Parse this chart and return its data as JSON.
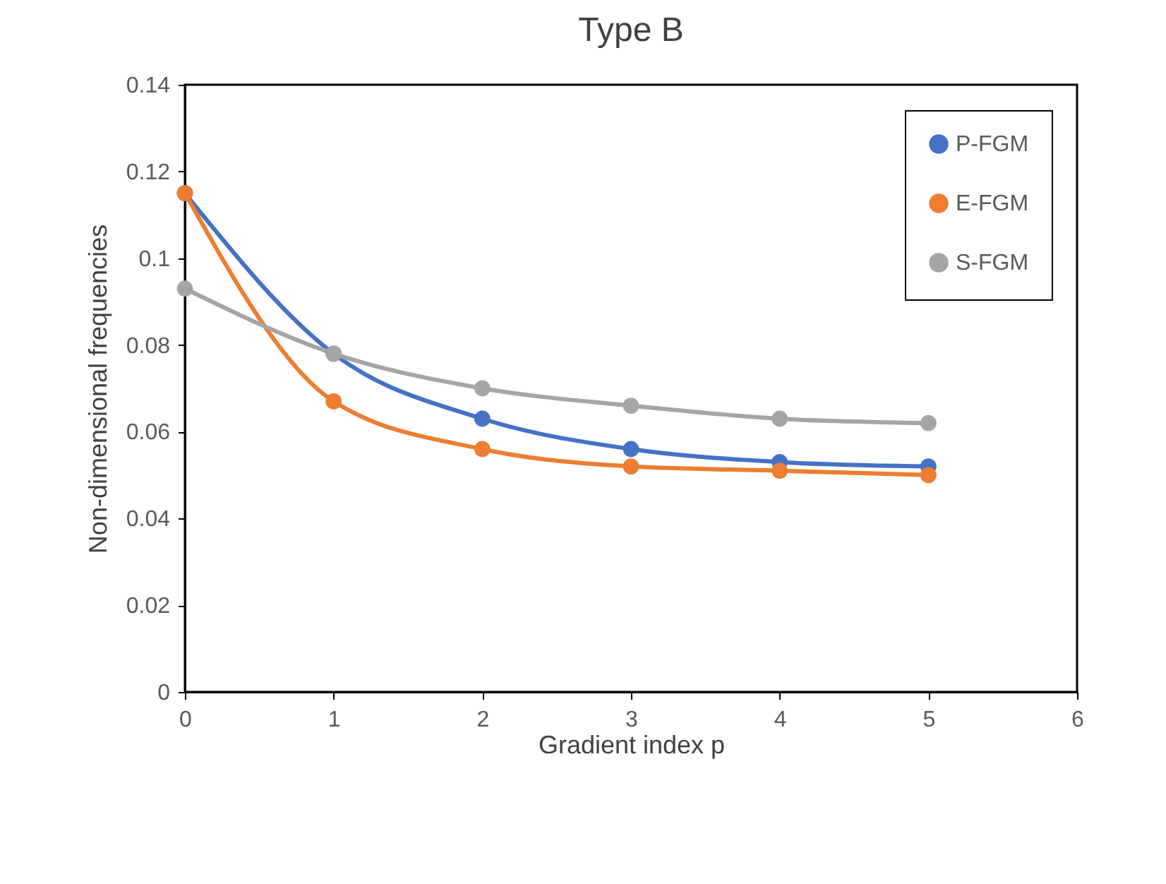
{
  "chart_data": {
    "type": "line",
    "title": "Type B",
    "xlabel": "Gradient index p",
    "ylabel": "Non-dimensional frequencies",
    "x": [
      0,
      1,
      2,
      3,
      4,
      5
    ],
    "series": [
      {
        "name": "P-FGM",
        "color": "#4472c4",
        "values": [
          0.115,
          0.078,
          0.063,
          0.056,
          0.053,
          0.052
        ]
      },
      {
        "name": "E-FGM",
        "color": "#ed7d31",
        "values": [
          0.115,
          0.067,
          0.056,
          0.052,
          0.051,
          0.05
        ]
      },
      {
        "name": "S-FGM",
        "color": "#a5a5a5",
        "values": [
          0.093,
          0.078,
          0.07,
          0.066,
          0.063,
          0.062
        ]
      }
    ],
    "xlim": [
      0,
      6
    ],
    "xticks": [
      0,
      1,
      2,
      3,
      4,
      5,
      6
    ],
    "ylim": [
      0,
      0.14
    ],
    "yticks": [
      0,
      0.02,
      0.04,
      0.06,
      0.08,
      0.1,
      0.12,
      0.14
    ],
    "grid": false,
    "legend": "top right",
    "marker": "circle",
    "line_style": "solid"
  }
}
